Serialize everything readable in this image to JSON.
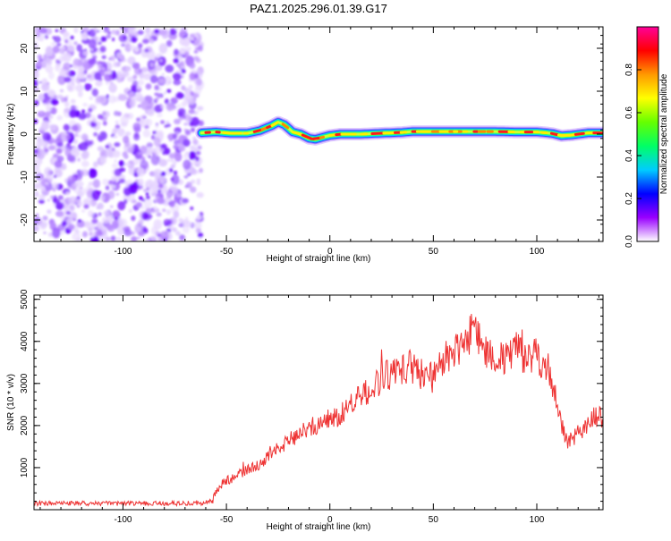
{
  "figure": {
    "title": "PAZ1.2025.296.01.39.G17"
  },
  "chart_data": [
    {
      "type": "heatmap",
      "name": "spectrogram",
      "xlabel": "Height of straight line (km)",
      "ylabel": "Frequency (Hz)",
      "xlim": [
        -143,
        132
      ],
      "ylim": [
        -25,
        25
      ],
      "xticks": [
        -100,
        -50,
        0,
        50,
        100
      ],
      "yticks": [
        -20,
        -10,
        0,
        10,
        20
      ],
      "noise_region_x": [
        -143,
        -62
      ],
      "signal_region_x": [
        -62,
        132
      ],
      "signal_centerline": {
        "x": [
          -62,
          -55,
          -48,
          -40,
          -34,
          -28,
          -25,
          -22,
          -18,
          -14,
          -10,
          -7,
          -4,
          0,
          5,
          15,
          25,
          35,
          40,
          50,
          60,
          70,
          80,
          90,
          95,
          100,
          105,
          108,
          112,
          117,
          125,
          132
        ],
        "y": [
          0.3,
          0.5,
          0.2,
          0.2,
          0.8,
          2.0,
          2.8,
          2.2,
          0.5,
          0.0,
          -1.0,
          -1.2,
          -0.8,
          -0.3,
          0.0,
          0.0,
          0.2,
          0.4,
          0.6,
          0.6,
          0.6,
          0.6,
          0.6,
          0.5,
          0.5,
          0.5,
          0.3,
          0.1,
          -0.4,
          -0.2,
          0.3,
          0.3
        ]
      },
      "colorbar": {
        "label": "Normalized spectral amplitude",
        "range": [
          0,
          1
        ],
        "ticks": [
          "0.0",
          "0.2",
          "0.4",
          "0.6",
          "0.8"
        ],
        "colors": [
          "#ffffff",
          "#9900ff",
          "#0000ff",
          "#00ccff",
          "#00ff66",
          "#66ff00",
          "#ffff00",
          "#ff9900",
          "#ff0000",
          "#ff0099"
        ]
      }
    },
    {
      "type": "line",
      "name": "snr",
      "xlabel": "Height of straight line (km)",
      "ylabel": "SNR (10 * v/v)",
      "xlim": [
        -143,
        132
      ],
      "ylim": [
        0,
        5100
      ],
      "xticks": [
        -100,
        -50,
        0,
        50,
        100
      ],
      "yticks": [
        1000,
        2000,
        3000,
        4000,
        5000
      ],
      "line_color": "#ee3333",
      "series": [
        {
          "name": "SNR",
          "x": [
            -143,
            -130,
            -110,
            -90,
            -70,
            -62,
            -57,
            -54,
            -50,
            -45,
            -40,
            -35,
            -30,
            -25,
            -20,
            -15,
            -10,
            -5,
            0,
            5,
            10,
            15,
            20,
            25,
            30,
            35,
            40,
            45,
            50,
            55,
            60,
            65,
            70,
            75,
            80,
            85,
            90,
            95,
            100,
            105,
            108,
            112,
            115,
            120,
            125,
            130,
            132
          ],
          "y": [
            150,
            150,
            150,
            150,
            150,
            160,
            200,
            500,
            700,
            800,
            950,
            1050,
            1250,
            1450,
            1650,
            1800,
            1950,
            2050,
            2150,
            2250,
            2500,
            2700,
            2850,
            3100,
            3250,
            3350,
            3400,
            3200,
            3150,
            3500,
            3750,
            4050,
            4300,
            3850,
            3600,
            3550,
            3900,
            3550,
            3650,
            3400,
            2900,
            2000,
            1600,
            1800,
            2100,
            2250,
            2100
          ]
        }
      ]
    }
  ]
}
